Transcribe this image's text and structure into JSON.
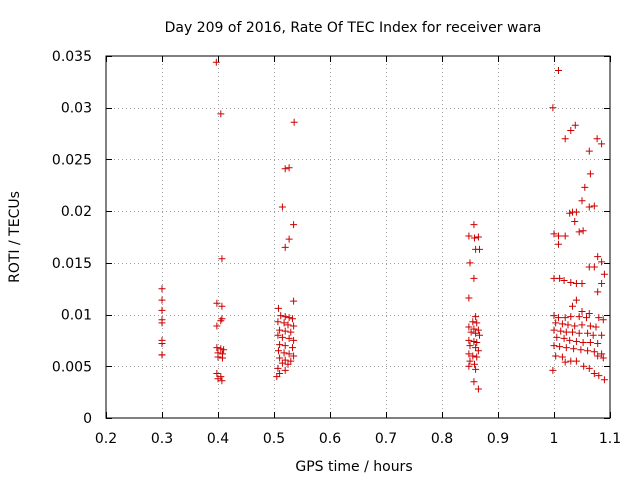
{
  "chart_data": {
    "type": "scatter",
    "title": "Day 209 of 2016, Rate Of TEC Index for receiver wara",
    "xlabel": "GPS time / hours",
    "ylabel": "ROTI / TECUs",
    "xlim": [
      0.2,
      1.1
    ],
    "ylim": [
      0,
      0.035
    ],
    "xticks": [
      0.2,
      0.3,
      0.4,
      0.5,
      0.6,
      0.7,
      0.8,
      0.9,
      1,
      1.1
    ],
    "xtick_labels": [
      "0.2",
      "0.3",
      "0.4",
      "0.5",
      "0.6",
      "0.7",
      "0.8",
      "0.9",
      "1",
      "1.1"
    ],
    "yticks": [
      0,
      0.005,
      0.01,
      0.015,
      0.02,
      0.025,
      0.03,
      0.035
    ],
    "ytick_labels": [
      "0",
      "0.005",
      "0.01",
      "0.015",
      "0.02",
      "0.025",
      "0.03",
      "0.035"
    ],
    "grid": true,
    "marker": "+",
    "color": "#cc0000",
    "series": [
      {
        "name": "ROTI",
        "points": [
          [
            0.3,
            0.0125
          ],
          [
            0.3,
            0.0114
          ],
          [
            0.3,
            0.0104
          ],
          [
            0.3,
            0.0095
          ],
          [
            0.3,
            0.0092
          ],
          [
            0.3,
            0.0075
          ],
          [
            0.3,
            0.0072
          ],
          [
            0.3,
            0.0061
          ],
          [
            0.3,
            0.0061
          ],
          [
            0.397,
            0.0344
          ],
          [
            0.405,
            0.0294
          ],
          [
            0.407,
            0.0154
          ],
          [
            0.398,
            0.0111
          ],
          [
            0.407,
            0.0108
          ],
          [
            0.407,
            0.0096
          ],
          [
            0.405,
            0.0094
          ],
          [
            0.398,
            0.0089
          ],
          [
            0.398,
            0.0068
          ],
          [
            0.405,
            0.0067
          ],
          [
            0.41,
            0.0066
          ],
          [
            0.4,
            0.0063
          ],
          [
            0.408,
            0.0062
          ],
          [
            0.4,
            0.0059
          ],
          [
            0.408,
            0.0058
          ],
          [
            0.398,
            0.0043
          ],
          [
            0.405,
            0.004
          ],
          [
            0.4,
            0.0038
          ],
          [
            0.407,
            0.0036
          ],
          [
            0.515,
            0.0204
          ],
          [
            0.52,
            0.0241
          ],
          [
            0.527,
            0.0242
          ],
          [
            0.536,
            0.0286
          ],
          [
            0.535,
            0.0187
          ],
          [
            0.527,
            0.0173
          ],
          [
            0.52,
            0.0165
          ],
          [
            0.535,
            0.0113
          ],
          [
            0.508,
            0.0106
          ],
          [
            0.512,
            0.0099
          ],
          [
            0.52,
            0.0098
          ],
          [
            0.527,
            0.0097
          ],
          [
            0.533,
            0.0096
          ],
          [
            0.507,
            0.0093
          ],
          [
            0.518,
            0.0092
          ],
          [
            0.525,
            0.009
          ],
          [
            0.535,
            0.0089
          ],
          [
            0.51,
            0.0085
          ],
          [
            0.52,
            0.0084
          ],
          [
            0.53,
            0.0083
          ],
          [
            0.507,
            0.008
          ],
          [
            0.515,
            0.0078
          ],
          [
            0.527,
            0.0077
          ],
          [
            0.535,
            0.0075
          ],
          [
            0.51,
            0.0071
          ],
          [
            0.52,
            0.007
          ],
          [
            0.533,
            0.0068
          ],
          [
            0.508,
            0.0065
          ],
          [
            0.518,
            0.0063
          ],
          [
            0.527,
            0.0062
          ],
          [
            0.535,
            0.006
          ],
          [
            0.51,
            0.0058
          ],
          [
            0.52,
            0.0056
          ],
          [
            0.53,
            0.0055
          ],
          [
            0.515,
            0.0053
          ],
          [
            0.525,
            0.0052
          ],
          [
            0.507,
            0.0048
          ],
          [
            0.52,
            0.0046
          ],
          [
            0.51,
            0.0043
          ],
          [
            0.505,
            0.004
          ],
          [
            0.857,
            0.0187
          ],
          [
            0.848,
            0.0176
          ],
          [
            0.858,
            0.0174
          ],
          [
            0.865,
            0.0175
          ],
          [
            0.86,
            0.0163
          ],
          [
            0.867,
            0.0163
          ],
          [
            0.85,
            0.015
          ],
          [
            0.857,
            0.0135
          ],
          [
            0.848,
            0.0116
          ],
          [
            0.86,
            0.0098
          ],
          [
            0.855,
            0.0093
          ],
          [
            0.862,
            0.0092
          ],
          [
            0.848,
            0.0088
          ],
          [
            0.857,
            0.0086
          ],
          [
            0.865,
            0.0085
          ],
          [
            0.852,
            0.0083
          ],
          [
            0.86,
            0.0082
          ],
          [
            0.867,
            0.008
          ],
          [
            0.848,
            0.0075
          ],
          [
            0.857,
            0.0074
          ],
          [
            0.862,
            0.0073
          ],
          [
            0.85,
            0.007
          ],
          [
            0.86,
            0.0068
          ],
          [
            0.865,
            0.0065
          ],
          [
            0.848,
            0.0062
          ],
          [
            0.855,
            0.006
          ],
          [
            0.862,
            0.0059
          ],
          [
            0.85,
            0.0055
          ],
          [
            0.858,
            0.0052
          ],
          [
            0.848,
            0.005
          ],
          [
            0.86,
            0.0047
          ],
          [
            0.857,
            0.0035
          ],
          [
            0.865,
            0.0028
          ],
          [
            1.008,
            0.0336
          ],
          [
            0.998,
            0.03
          ],
          [
            1.038,
            0.0283
          ],
          [
            1.03,
            0.0278
          ],
          [
            1.02,
            0.027
          ],
          [
            1.077,
            0.027
          ],
          [
            1.085,
            0.0265
          ],
          [
            1.063,
            0.0258
          ],
          [
            1.065,
            0.0236
          ],
          [
            1.055,
            0.0223
          ],
          [
            1.05,
            0.021
          ],
          [
            1.072,
            0.0205
          ],
          [
            1.063,
            0.0204
          ],
          [
            1.033,
            0.0199
          ],
          [
            1.04,
            0.0199
          ],
          [
            1.028,
            0.0198
          ],
          [
            1.037,
            0.019
          ],
          [
            1.045,
            0.018
          ],
          [
            1.052,
            0.0181
          ],
          [
            1.0,
            0.0178
          ],
          [
            1.008,
            0.0176
          ],
          [
            1.02,
            0.0176
          ],
          [
            1.008,
            0.0168
          ],
          [
            1.078,
            0.0156
          ],
          [
            1.085,
            0.0151
          ],
          [
            1.072,
            0.0146
          ],
          [
            1.063,
            0.0146
          ],
          [
            1.09,
            0.0139
          ],
          [
            1.0,
            0.0135
          ],
          [
            1.01,
            0.0135
          ],
          [
            1.018,
            0.0133
          ],
          [
            1.03,
            0.0131
          ],
          [
            1.04,
            0.013
          ],
          [
            1.05,
            0.013
          ],
          [
            1.085,
            0.013
          ],
          [
            1.078,
            0.0122
          ],
          [
            1.04,
            0.0114
          ],
          [
            1.033,
            0.0108
          ],
          [
            1.05,
            0.0103
          ],
          [
            1.063,
            0.0101
          ],
          [
            1.0,
            0.0099
          ],
          [
            1.008,
            0.0097
          ],
          [
            1.02,
            0.0097
          ],
          [
            1.03,
            0.0098
          ],
          [
            1.045,
            0.0098
          ],
          [
            1.058,
            0.0097
          ],
          [
            1.08,
            0.0097
          ],
          [
            1.088,
            0.0095
          ],
          [
            1.003,
            0.0092
          ],
          [
            1.015,
            0.0091
          ],
          [
            1.025,
            0.009
          ],
          [
            1.037,
            0.0089
          ],
          [
            1.05,
            0.009
          ],
          [
            1.065,
            0.0089
          ],
          [
            1.075,
            0.0088
          ],
          [
            1.0,
            0.0085
          ],
          [
            1.012,
            0.0084
          ],
          [
            1.022,
            0.0083
          ],
          [
            1.033,
            0.0083
          ],
          [
            1.045,
            0.0082
          ],
          [
            1.06,
            0.0082
          ],
          [
            1.07,
            0.008
          ],
          [
            1.085,
            0.008
          ],
          [
            1.005,
            0.0078
          ],
          [
            1.018,
            0.0077
          ],
          [
            1.028,
            0.0075
          ],
          [
            1.04,
            0.0074
          ],
          [
            1.052,
            0.0073
          ],
          [
            1.065,
            0.0073
          ],
          [
            1.078,
            0.0072
          ],
          [
            1.0,
            0.007
          ],
          [
            1.01,
            0.0069
          ],
          [
            1.022,
            0.0068
          ],
          [
            1.035,
            0.0067
          ],
          [
            1.048,
            0.0066
          ],
          [
            1.06,
            0.0065
          ],
          [
            1.072,
            0.0064
          ],
          [
            1.085,
            0.0062
          ],
          [
            1.003,
            0.006
          ],
          [
            1.015,
            0.0059
          ],
          [
            1.078,
            0.006
          ],
          [
            1.088,
            0.0058
          ],
          [
            1.03,
            0.0055
          ],
          [
            1.04,
            0.0055
          ],
          [
            1.02,
            0.0054
          ],
          [
            1.053,
            0.005
          ],
          [
            1.063,
            0.0048
          ],
          [
            0.998,
            0.0046
          ],
          [
            1.072,
            0.0043
          ],
          [
            1.08,
            0.0041
          ],
          [
            1.09,
            0.0037
          ]
        ]
      }
    ]
  }
}
